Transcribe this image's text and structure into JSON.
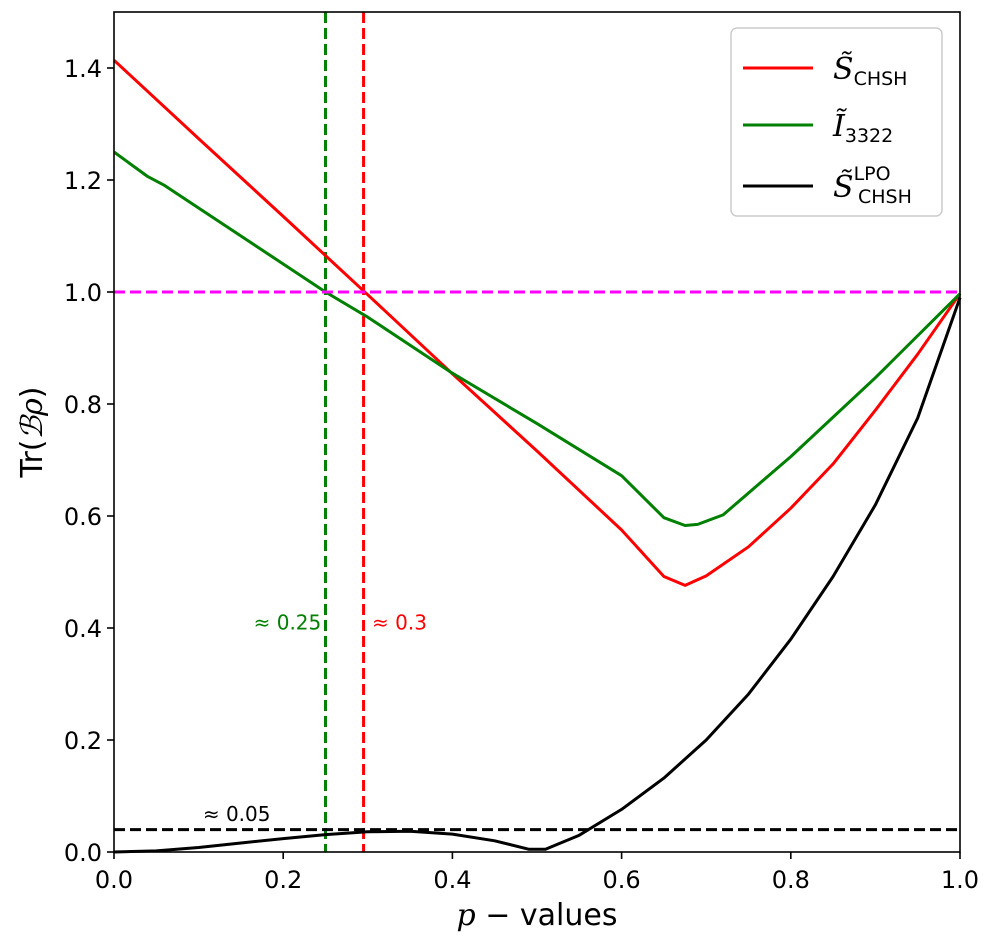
{
  "chart_data": {
    "type": "line",
    "xlabel_var": "p",
    "xlabel_rest": " − values",
    "ylabel_pre": "Tr(",
    "ylabel_script": "ℬρ",
    "ylabel_post": ")",
    "xlim": [
      0.0,
      1.0
    ],
    "ylim": [
      0.0,
      1.5
    ],
    "x_ticks": [
      0.0,
      0.2,
      0.4,
      0.6,
      0.8,
      1.0
    ],
    "y_ticks": [
      0.0,
      0.2,
      0.4,
      0.6,
      0.8,
      1.0,
      1.2,
      1.4
    ],
    "x_tick_labels": [
      "0.0",
      "0.2",
      "0.4",
      "0.6",
      "0.8",
      "1.0"
    ],
    "y_tick_labels": [
      "0.0",
      "0.2",
      "0.4",
      "0.6",
      "0.8",
      "1.0",
      "1.2",
      "1.4"
    ],
    "series": [
      {
        "name": "S_CHSH",
        "color": "#ff0000",
        "x": [
          0.0,
          0.1,
          0.2,
          0.25,
          0.3,
          0.4,
          0.5,
          0.6,
          0.65,
          0.675,
          0.7,
          0.75,
          0.8,
          0.85,
          0.9,
          0.95,
          1.0
        ],
        "y": [
          1.414,
          1.274,
          1.135,
          1.065,
          0.995,
          0.854,
          0.716,
          0.575,
          0.492,
          0.476,
          0.493,
          0.545,
          0.614,
          0.693,
          0.789,
          0.889,
          0.997
        ]
      },
      {
        "name": "I_3322",
        "color": "#008000",
        "x": [
          0.0,
          0.04,
          0.06,
          0.1,
          0.2,
          0.25,
          0.3,
          0.4,
          0.5,
          0.6,
          0.65,
          0.675,
          0.69,
          0.72,
          0.8,
          0.9,
          1.0
        ],
        "y": [
          1.25,
          1.206,
          1.19,
          1.15,
          1.05,
          1.0,
          0.955,
          0.855,
          0.765,
          0.672,
          0.597,
          0.583,
          0.585,
          0.602,
          0.706,
          0.847,
          0.997
        ]
      },
      {
        "name": "S_CHSH_LPO",
        "color": "#000000",
        "x": [
          0.0,
          0.05,
          0.1,
          0.15,
          0.2,
          0.25,
          0.3,
          0.35,
          0.4,
          0.45,
          0.49,
          0.51,
          0.55,
          0.6,
          0.65,
          0.7,
          0.75,
          0.8,
          0.85,
          0.9,
          0.95,
          1.0
        ],
        "y": [
          0.0,
          0.002,
          0.008,
          0.016,
          0.024,
          0.031,
          0.036,
          0.037,
          0.032,
          0.02,
          0.005,
          0.005,
          0.03,
          0.076,
          0.132,
          0.2,
          0.282,
          0.38,
          0.492,
          0.62,
          0.775,
          0.99
        ]
      }
    ],
    "reference_lines": [
      {
        "orientation": "horizontal",
        "value": 1.0,
        "color": "#ff00ff",
        "style": "dashed"
      },
      {
        "orientation": "horizontal",
        "value": 0.04,
        "color": "#000000",
        "style": "dashed"
      },
      {
        "orientation": "vertical",
        "value": 0.25,
        "color": "#008000",
        "style": "dashed"
      },
      {
        "orientation": "vertical",
        "value": 0.295,
        "color": "#ff0000",
        "style": "dashed"
      }
    ],
    "annotations": [
      {
        "text": "≈ 0.25",
        "color": "#008000",
        "x": 0.245,
        "y": 0.41,
        "anchor": "end"
      },
      {
        "text": "≈ 0.3",
        "color": "#ff0000",
        "x": 0.305,
        "y": 0.41,
        "anchor": "start"
      },
      {
        "text": "≈ 0.05",
        "color": "#000000",
        "x": 0.105,
        "y": 0.068,
        "anchor": "start"
      }
    ],
    "legend": {
      "position": "top-right",
      "entries": [
        {
          "main": "S̃",
          "sub": "CHSH",
          "sup": "",
          "italic": true,
          "color": "#ff0000"
        },
        {
          "main": "Ĩ",
          "sub": "3322",
          "sup": "",
          "italic": true,
          "color": "#008000"
        },
        {
          "main": "S̃",
          "sub": "CHSH",
          "sup": "LPO",
          "italic": true,
          "color": "#000000"
        }
      ]
    }
  }
}
